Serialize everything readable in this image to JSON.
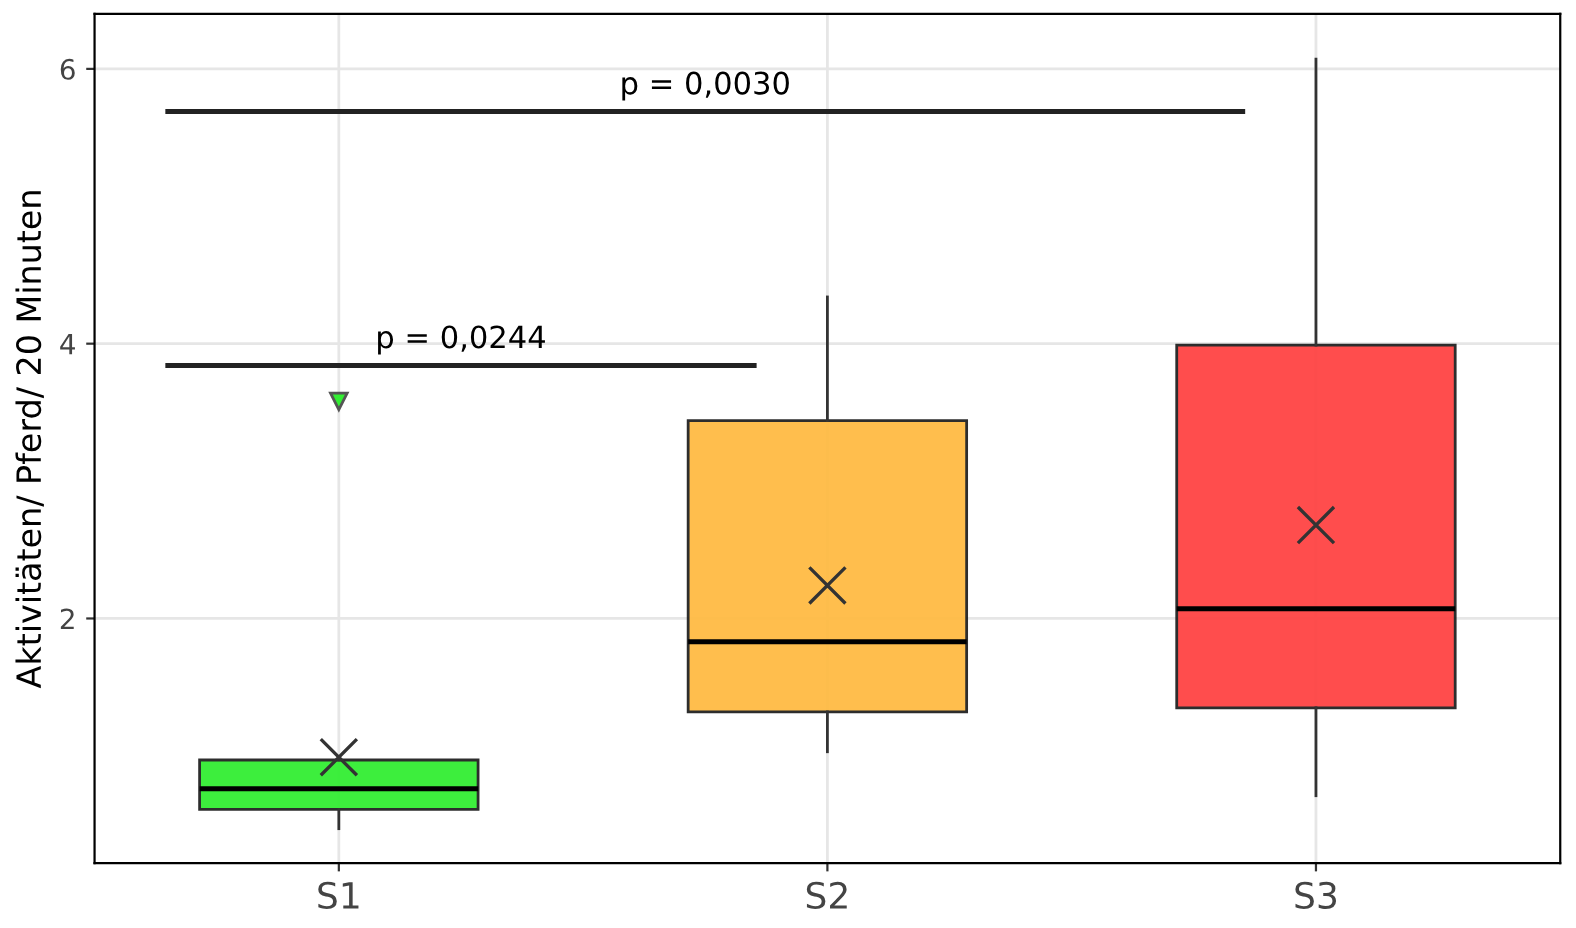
{
  "chart_data": {
    "type": "box",
    "ylabel": "Aktivitäten/ Pferd/ 20 Minuten",
    "categories": [
      "S1",
      "S2",
      "S3"
    ],
    "boxes": [
      {
        "low": 0.47,
        "q1": 0.61,
        "median": 0.76,
        "q3": 0.97,
        "high": 0.97,
        "mean": 0.99,
        "outliers": [
          3.58
        ]
      },
      {
        "low": 1.03,
        "q1": 1.32,
        "median": 1.83,
        "q3": 3.44,
        "high": 4.34,
        "mean": 2.24
      },
      {
        "low": 0.71,
        "q1": 1.35,
        "median": 2.07,
        "q3": 3.99,
        "high": 6.07,
        "mean": 2.68
      }
    ],
    "colors": [
      "#33ee33",
      "#ffbb44",
      "#ff4444"
    ],
    "ylim": [
      0.22,
      6.4
    ],
    "yticks": [
      2,
      4,
      6
    ],
    "grid": true,
    "annotations": [
      "p = 0,0244",
      "p = 0,0030"
    ]
  }
}
